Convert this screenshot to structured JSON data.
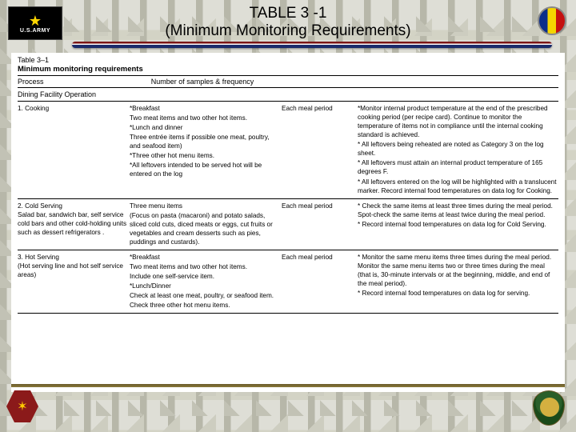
{
  "header": {
    "title": "TABLE 3 -1",
    "subtitle": "(Minimum Monitoring Requirements)"
  },
  "logo": {
    "star": "★",
    "text": "U.S.ARMY"
  },
  "hex_symbol": "✶",
  "table": {
    "label": "Table 3–1",
    "title": "Minimum monitoring requirements",
    "col1_header": "Process",
    "col2_header": "Number of samples & frequency",
    "section": "Dining Facility Operation",
    "rows": [
      {
        "process": "1. Cooking",
        "samples": [
          "*Breakfast",
          "Two meat items and two other hot items.",
          "*Lunch and dinner",
          "Three entrée items if possible one meat, poultry, and seafood item)",
          "*Three other hot menu items.",
          "*All leftovers intended to be served hot will be entered on the log"
        ],
        "freq": "Each meal period",
        "notes": [
          "*Monitor internal product temperature at the end of the prescribed cooking period (per recipe card). Continue to monitor the temperature of items not in compliance until the internal cooking standard is achieved.",
          "* All leftovers being reheated are noted as Category 3 on the log sheet.",
          "* All leftovers must attain an internal product temperature of 165 degrees F.",
          "* All leftovers entered on the log will be highlighted with a translucent marker. Record internal food temperatures on data log for Cooking."
        ]
      },
      {
        "process": "2. Cold Serving",
        "process_detail": "Salad bar, sandwich bar, self service cold bars and other cold-holding units such as dessert refrigerators .",
        "samples": [
          "Three menu items",
          "(Focus on pasta (macaroni) and potato salads, sliced cold cuts, diced meats or eggs, cut fruits or vegetables and cream desserts such as pies, puddings and custards)."
        ],
        "freq": "Each meal period",
        "notes": [
          "* Check the same items at least three times during the meal period. Spot-check the same items at least twice during the meal period.",
          "* Record internal food temperatures on data log for Cold Serving."
        ]
      },
      {
        "process": "3. Hot Serving",
        "process_detail": "(Hot serving line and hot self service areas)",
        "samples": [
          "*Breakfast",
          "Two meat items and two other hot items.",
          "Include one self-service item.",
          "*Lunch/Dinner",
          "Check at least one meat, poultry, or seafood item.",
          "Check three other hot menu items."
        ],
        "freq": "Each meal period",
        "notes": [
          "* Monitor the same menu items three times during the meal period. Monitor the same menu items two or three times during the meal (that is, 30-minute intervals or at the beginning, middle, and end of the meal period).",
          "* Record internal food temperatures on data log for serving."
        ]
      }
    ]
  }
}
